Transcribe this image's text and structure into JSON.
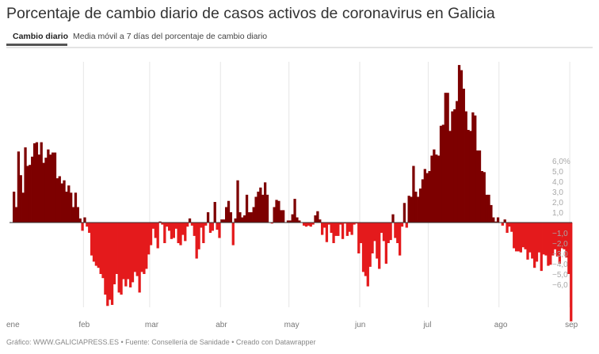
{
  "title": "Porcentaje de cambio diario de casos activos de coronavirus en Galicia",
  "tabs": [
    {
      "label": "Cambio diario",
      "active": true
    },
    {
      "label": "Media móvil a 7 días del porcentaje de cambio diario",
      "active": false
    }
  ],
  "footer": "Gráfico: WWW.GALICIAPRESS.ES • Fuente: Consellería de Sanidade • Creado con Datawrapper",
  "colors": {
    "positive": "#7d0000",
    "negative": "#e41a1c",
    "grid": "#e6e6e6"
  },
  "chart_data": {
    "type": "bar",
    "xlabel": "",
    "ylabel": "",
    "ylim": [
      -9.6,
      15.3
    ],
    "grid": true,
    "y_ticks": [
      6,
      5,
      4,
      3,
      2,
      1,
      -1,
      -2,
      -3,
      -4,
      -5,
      -6
    ],
    "y_tick_labels": [
      "6,0%",
      "5,0",
      "4,0",
      "3,0",
      "2,0",
      "1,0",
      "−1,0",
      "−2,0",
      "−3,0",
      "−4,0",
      "−5,0",
      "−6,0"
    ],
    "months": [
      {
        "label": "ene",
        "values": [
          3.0,
          1.5,
          6.9,
          4.6,
          2.9,
          7.3,
          5.5,
          5.6,
          6.4,
          7.7,
          7.8,
          6.6,
          7.8,
          5.8,
          6.3,
          7.1,
          6.6,
          6.8,
          6.8,
          4.3,
          4.5,
          3.8,
          4.1,
          3.0,
          3.6,
          2.9,
          1.5,
          2.9,
          1.5,
          0.4,
          -0.8
        ]
      },
      {
        "label": "feb",
        "values": [
          0.5,
          -0.4,
          -1.0,
          -3.2,
          -3.8,
          -4.2,
          -4.4,
          -5.0,
          -5.4,
          -7.0,
          -8.1,
          -7.5,
          -8.0,
          -6.0,
          -5.0,
          -6.8,
          -7.0,
          -5.5,
          -6.2,
          -5.5,
          -6.3,
          -5.8,
          -4.8,
          -5.2,
          -6.8,
          -4.8,
          -5.0,
          -4.5,
          -3.1
        ]
      },
      {
        "label": "mar",
        "values": [
          -2.2,
          -0.6,
          -1.5,
          -2.5,
          0.1,
          -0.2,
          -2.0,
          -0.4,
          -0.8,
          -1.6,
          -1.5,
          -0.6,
          -2.0,
          -2.2,
          -1.2,
          -1.8,
          -0.4,
          0.4,
          -0.3,
          -1.3,
          -3.5,
          -2.6,
          -0.5,
          -2.0,
          -0.3,
          1.0,
          -1.0,
          -0.8,
          2.0,
          -0.7,
          -1.5
        ]
      },
      {
        "label": "abr",
        "values": [
          0.3,
          0.3,
          1.5,
          2.1,
          1.0,
          -2.2,
          0.4,
          4.1,
          1.0,
          0.5,
          0.7,
          2.7,
          1.0,
          1.0,
          1.5,
          2.5,
          3.0,
          3.4,
          2.7,
          3.9,
          2.7,
          0.0,
          -0.1,
          1.5,
          2.2,
          2.1,
          1.2,
          1.2,
          0.0,
          0.2
        ]
      },
      {
        "label": "may",
        "values": [
          0.2,
          0.8,
          2.3,
          0.5,
          0.2,
          0.0,
          -0.3,
          -0.4,
          -0.3,
          -0.4,
          -0.2,
          0.7,
          1.1,
          0.3,
          -1.2,
          -0.5,
          -1.9,
          -0.2,
          -1.0,
          -2.0,
          -1.3,
          -1.3,
          -0.2,
          -1.6,
          -0.1,
          -1.3,
          -0.9,
          -1.2,
          -0.2,
          -0.1,
          -3.0
        ]
      },
      {
        "label": "jun",
        "values": [
          -2.0,
          -4.8,
          -5.2,
          -6.2,
          -4.3,
          -3.0,
          -1.8,
          -3.5,
          -4.5,
          -1.0,
          -1.8,
          -4.0,
          -2.0,
          -1.7,
          0.8,
          -1.5,
          -2.0,
          -3.2,
          -0.4,
          1.9,
          -0.5,
          2.6,
          2.5,
          5.5,
          3.0,
          2.5,
          3.3,
          4.2,
          5.2,
          4.8
        ]
      },
      {
        "label": "jul",
        "values": [
          5.0,
          6.5,
          7.1,
          6.6,
          6.5,
          9.4,
          9.5,
          12.6,
          12.6,
          8.9,
          10.8,
          11.0,
          11.8,
          15.3,
          14.8,
          13.0,
          10.8,
          9.0,
          8.9,
          10.7,
          10.4,
          7.0,
          7.0,
          5.0,
          4.9,
          2.7,
          2.7,
          1.7,
          0.5,
          0.1,
          0.5
        ]
      },
      {
        "label": "ago",
        "values": [
          0.0,
          -0.3,
          0.3,
          -1.0,
          -0.4,
          -0.9,
          -2.5,
          -2.8,
          -2.8,
          -2.9,
          -2.4,
          -2.6,
          -3.6,
          -2.9,
          -3.5,
          -4.4,
          -3.8,
          -2.9,
          -4.7,
          -3.1,
          -3.2,
          -4.2,
          -4.1,
          -3.2,
          -2.6,
          -3.3,
          -4.0,
          -2.5,
          -2.6,
          -3.4,
          -5.0
        ]
      },
      {
        "label": "sep",
        "values": [
          -9.6
        ]
      }
    ]
  }
}
